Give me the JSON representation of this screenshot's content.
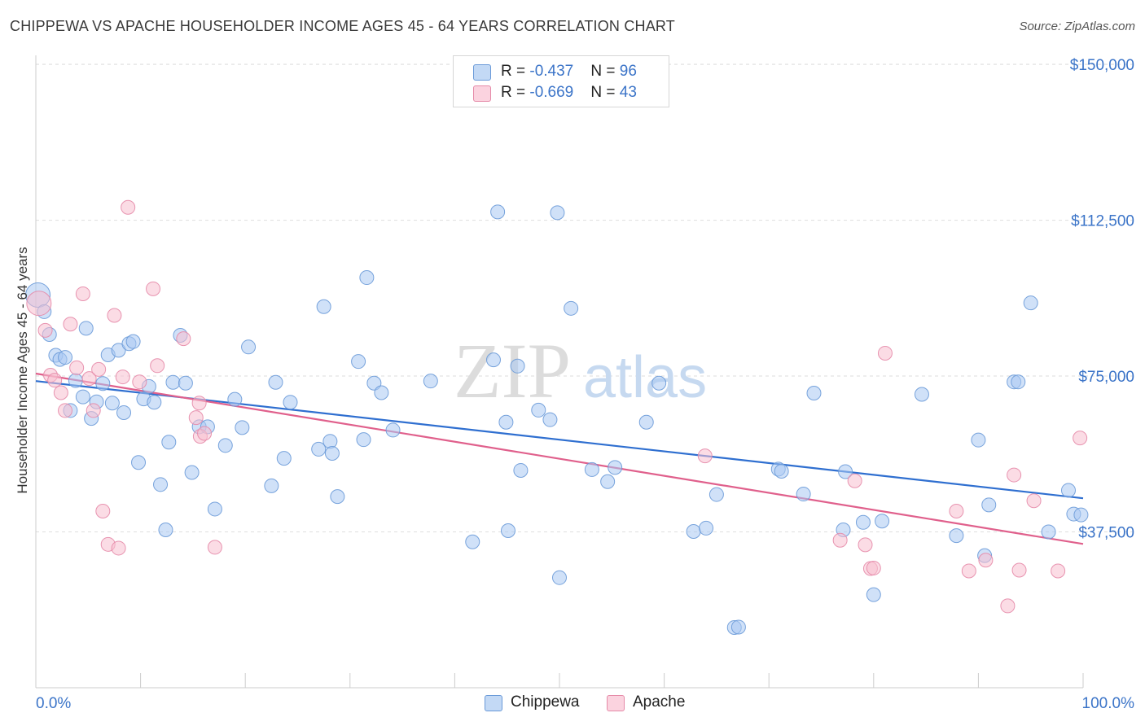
{
  "title": "CHIPPEWA VS APACHE HOUSEHOLDER INCOME AGES 45 - 64 YEARS CORRELATION CHART",
  "source": "Source: ZipAtlas.com",
  "watermark": {
    "zip": "ZIP",
    "atlas": "atlas"
  },
  "legend": {
    "rows": [
      {
        "r_label": "R = ",
        "r_value": "-0.437",
        "n_label": "N = ",
        "n_value": "96",
        "color": "#a9c9f2",
        "border": "#6a9ad8"
      },
      {
        "r_label": "R = ",
        "r_value": "-0.669",
        "n_label": "N = ",
        "n_value": "43",
        "color": "#f7c0d0",
        "border": "#e58aa8"
      }
    ]
  },
  "bottom_legend": {
    "chippewa": "Chippewa",
    "apache": "Apache"
  },
  "chart_data": {
    "type": "scatter",
    "title": "CHIPPEWA VS APACHE HOUSEHOLDER INCOME AGES 45 - 64 YEARS CORRELATION CHART",
    "xlabel": "",
    "ylabel": "Householder Income Ages 45 - 64 years",
    "xlim": [
      0,
      100
    ],
    "ylim": [
      0,
      157500
    ],
    "x_tick_labels": [
      "0.0%",
      "100.0%"
    ],
    "y_ticks": [
      37500,
      75000,
      112500,
      150000
    ],
    "y_tick_labels": [
      "$37,500",
      "$75,000",
      "$112,500",
      "$150,000"
    ],
    "grid": true,
    "series": [
      {
        "name": "Chippewa",
        "color": "#6a9ad8",
        "fill": "#a9c9f2",
        "trend": {
          "x": [
            0,
            100
          ],
          "y": [
            73800,
            45600
          ]
        },
        "points": [
          [
            0.2,
            94500
          ],
          [
            0.8,
            90500
          ],
          [
            1.3,
            85000
          ],
          [
            1.9,
            80000
          ],
          [
            2.3,
            79000
          ],
          [
            2.8,
            79500
          ],
          [
            3.3,
            66700
          ],
          [
            3.8,
            73900
          ],
          [
            4.5,
            70000
          ],
          [
            4.8,
            86500
          ],
          [
            5.3,
            64800
          ],
          [
            5.8,
            68800
          ],
          [
            6.4,
            73200
          ],
          [
            6.9,
            80100
          ],
          [
            7.3,
            68500
          ],
          [
            7.9,
            81200
          ],
          [
            8.4,
            66200
          ],
          [
            8.9,
            82800
          ],
          [
            9.3,
            83300
          ],
          [
            9.8,
            54200
          ],
          [
            10.3,
            69500
          ],
          [
            10.8,
            72500
          ],
          [
            11.3,
            68700
          ],
          [
            11.9,
            48900
          ],
          [
            12.4,
            38000
          ],
          [
            12.7,
            59100
          ],
          [
            13.1,
            73500
          ],
          [
            13.8,
            84800
          ],
          [
            14.3,
            73300
          ],
          [
            14.9,
            51800
          ],
          [
            15.6,
            62800
          ],
          [
            16.4,
            62800
          ],
          [
            17.1,
            43000
          ],
          [
            18.1,
            58300
          ],
          [
            19.0,
            69400
          ],
          [
            19.7,
            62600
          ],
          [
            20.3,
            82000
          ],
          [
            22.5,
            48600
          ],
          [
            22.9,
            73500
          ],
          [
            23.7,
            55200
          ],
          [
            24.3,
            68700
          ],
          [
            27.0,
            57400
          ],
          [
            27.5,
            91700
          ],
          [
            28.1,
            59300
          ],
          [
            28.3,
            56400
          ],
          [
            28.8,
            46000
          ],
          [
            30.8,
            78500
          ],
          [
            31.3,
            59700
          ],
          [
            31.6,
            98700
          ],
          [
            32.3,
            73300
          ],
          [
            33.0,
            71000
          ],
          [
            34.1,
            62000
          ],
          [
            37.7,
            73800
          ],
          [
            41.7,
            35100
          ],
          [
            43.7,
            78900
          ],
          [
            44.1,
            114500
          ],
          [
            44.9,
            63900
          ],
          [
            45.1,
            37800
          ],
          [
            46.0,
            77400
          ],
          [
            46.3,
            52300
          ],
          [
            48.0,
            66800
          ],
          [
            49.1,
            64500
          ],
          [
            49.8,
            114300
          ],
          [
            50.0,
            26500
          ],
          [
            51.1,
            91300
          ],
          [
            53.1,
            52500
          ],
          [
            54.6,
            49600
          ],
          [
            55.3,
            53000
          ],
          [
            58.3,
            63900
          ],
          [
            59.5,
            73300
          ],
          [
            62.8,
            37600
          ],
          [
            64.0,
            38400
          ],
          [
            65.0,
            46500
          ],
          [
            66.7,
            14500
          ],
          [
            67.1,
            14600
          ],
          [
            70.9,
            52600
          ],
          [
            71.2,
            52100
          ],
          [
            73.3,
            46600
          ],
          [
            74.3,
            70900
          ],
          [
            77.3,
            52000
          ],
          [
            77.1,
            38000
          ],
          [
            79.0,
            39800
          ],
          [
            80.0,
            22400
          ],
          [
            80.8,
            40100
          ],
          [
            84.6,
            70600
          ],
          [
            87.9,
            36600
          ],
          [
            90.0,
            59600
          ],
          [
            90.6,
            31800
          ],
          [
            91.0,
            44000
          ],
          [
            93.4,
            73600
          ],
          [
            93.8,
            73600
          ],
          [
            95.0,
            92600
          ],
          [
            98.6,
            47500
          ],
          [
            99.1,
            41800
          ],
          [
            99.8,
            41600
          ],
          [
            96.7,
            37500
          ]
        ]
      },
      {
        "name": "Apache",
        "color": "#e58aa8",
        "fill": "#f7c0d0",
        "trend": {
          "x": [
            0,
            100
          ],
          "y": [
            75600,
            34600
          ]
        },
        "points": [
          [
            0.3,
            92500
          ],
          [
            0.9,
            86000
          ],
          [
            1.4,
            75200
          ],
          [
            1.8,
            74000
          ],
          [
            2.4,
            71000
          ],
          [
            2.8,
            66700
          ],
          [
            3.3,
            87500
          ],
          [
            3.9,
            77000
          ],
          [
            4.5,
            94800
          ],
          [
            5.1,
            74400
          ],
          [
            5.5,
            66700
          ],
          [
            6.0,
            76600
          ],
          [
            6.4,
            42500
          ],
          [
            6.9,
            34500
          ],
          [
            7.5,
            89600
          ],
          [
            7.9,
            33600
          ],
          [
            8.3,
            74800
          ],
          [
            8.8,
            115600
          ],
          [
            9.9,
            73600
          ],
          [
            11.2,
            96000
          ],
          [
            11.6,
            77500
          ],
          [
            14.1,
            84000
          ],
          [
            15.3,
            65000
          ],
          [
            15.6,
            68500
          ],
          [
            15.7,
            60500
          ],
          [
            16.1,
            61200
          ],
          [
            17.1,
            33800
          ],
          [
            63.9,
            55800
          ],
          [
            76.8,
            35500
          ],
          [
            78.2,
            49800
          ],
          [
            79.2,
            34400
          ],
          [
            79.7,
            28700
          ],
          [
            80.0,
            28800
          ],
          [
            81.1,
            80500
          ],
          [
            87.9,
            42500
          ],
          [
            89.1,
            28100
          ],
          [
            90.7,
            30700
          ],
          [
            92.8,
            19700
          ],
          [
            93.4,
            51200
          ],
          [
            93.9,
            28300
          ],
          [
            95.3,
            45000
          ],
          [
            97.6,
            28100
          ],
          [
            99.7,
            60100
          ]
        ]
      }
    ]
  }
}
